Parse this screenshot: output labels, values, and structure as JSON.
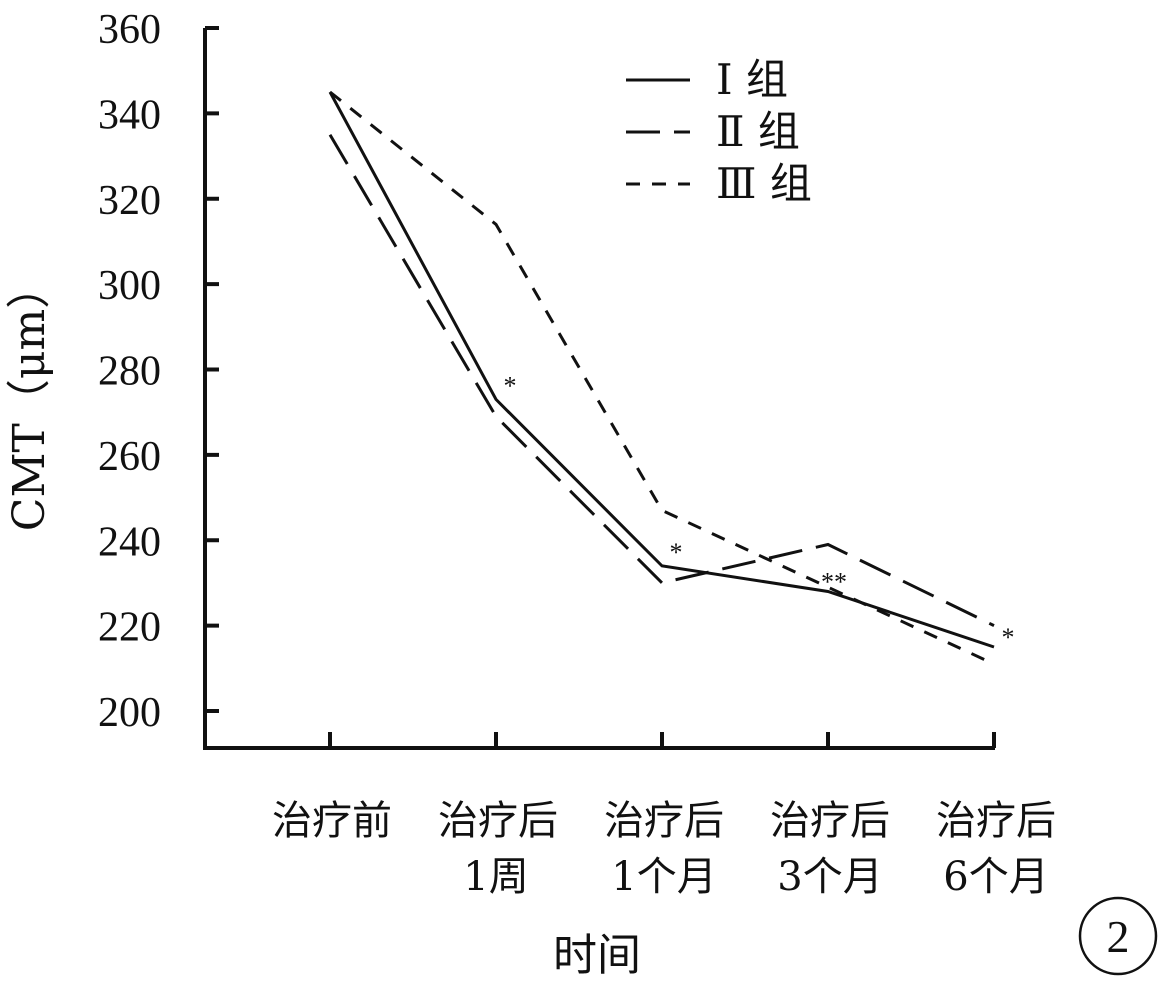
{
  "chart_data": {
    "type": "line",
    "title": "",
    "xlabel": "时间",
    "ylabel": "CMT（μm）",
    "categories": [
      [
        "治疗前",
        ""
      ],
      [
        "治疗后",
        "1周"
      ],
      [
        "治疗后",
        "1个月"
      ],
      [
        "治疗后",
        "3个月"
      ],
      [
        "治疗后",
        "6个月"
      ]
    ],
    "ylim": [
      200,
      360
    ],
    "yticks": [
      200,
      220,
      240,
      260,
      280,
      300,
      320,
      340,
      360
    ],
    "grid": false,
    "legend_position": "top-right",
    "series": [
      {
        "name": "Ⅰ 组",
        "style": "solid",
        "values": [
          345,
          273,
          234,
          228,
          215
        ]
      },
      {
        "name": "Ⅱ 组",
        "style": "long-dash",
        "values": [
          335,
          269,
          230,
          239,
          220
        ]
      },
      {
        "name": "Ⅲ 组",
        "style": "short-dash",
        "values": [
          345,
          314,
          247,
          229,
          211
        ]
      }
    ],
    "annotations": [
      {
        "category": 1,
        "text": "*",
        "y": 277
      },
      {
        "category": 2,
        "text": "*",
        "y": 238
      },
      {
        "category": 3,
        "text": "**",
        "y": 231
      },
      {
        "category": 4,
        "text": "*",
        "y": 218
      }
    ],
    "panel_label": "2"
  }
}
